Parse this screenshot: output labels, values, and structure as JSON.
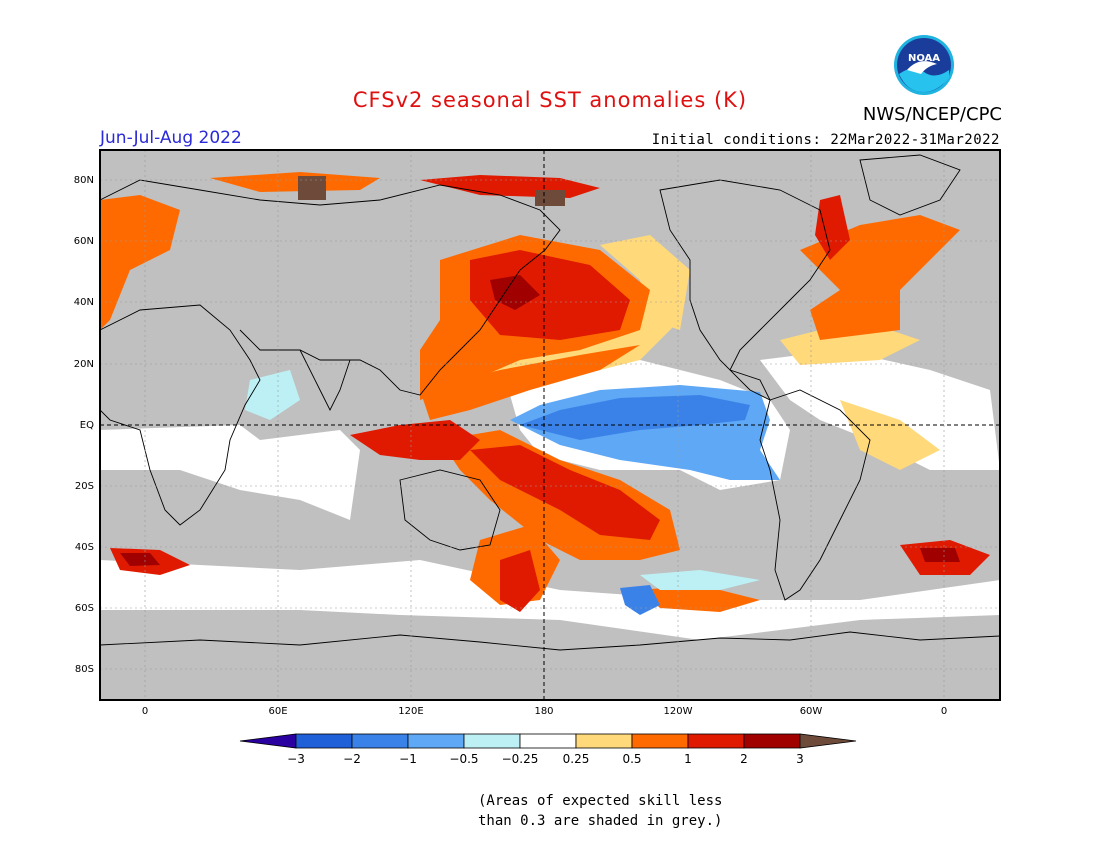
{
  "header": {
    "title": "CFSv2 seasonal SST anomalies (K)",
    "agency": "NWS/NCEP/CPC",
    "season": "Jun-Jul-Aug 2022",
    "initial_conditions": "Initial conditions: 22Mar2022-31Mar2022",
    "logo_text": "NOAA"
  },
  "map": {
    "lat_labels": [
      "80N",
      "60N",
      "40N",
      "20N",
      "EQ",
      "20S",
      "40S",
      "60S",
      "80S"
    ],
    "lon_labels": [
      "0",
      "60E",
      "120E",
      "180",
      "120W",
      "60W",
      "0"
    ],
    "colors": {
      "land": "#c0c0c0",
      "ocean_neutral": "#ffffff",
      "very_warm": "#a00000",
      "warm": "#e01a00",
      "moderate_warm": "#ff6a00",
      "slight_warm": "#ffd97a",
      "slight_cool": "#bdf0f5",
      "moderate_cool": "#5ea8f5",
      "cool": "#3b82e8",
      "extreme_warm": "#6e4a3a"
    }
  },
  "colorbar": {
    "labels": [
      "-3",
      "-2",
      "-1",
      "-0.5",
      "-0.25",
      "0.25",
      "0.5",
      "1",
      "2",
      "3"
    ],
    "colors": [
      "#2a00a0",
      "#1f5fd8",
      "#3b82e8",
      "#5ea8f5",
      "#bdf0f5",
      "#ffffff",
      "#ffd97a",
      "#ff6a00",
      "#e01a00",
      "#a00000",
      "#6e4a3a"
    ]
  },
  "note": {
    "line1": "(Areas of expected skill less",
    "line2": "than 0.3 are shaded in grey.)"
  }
}
